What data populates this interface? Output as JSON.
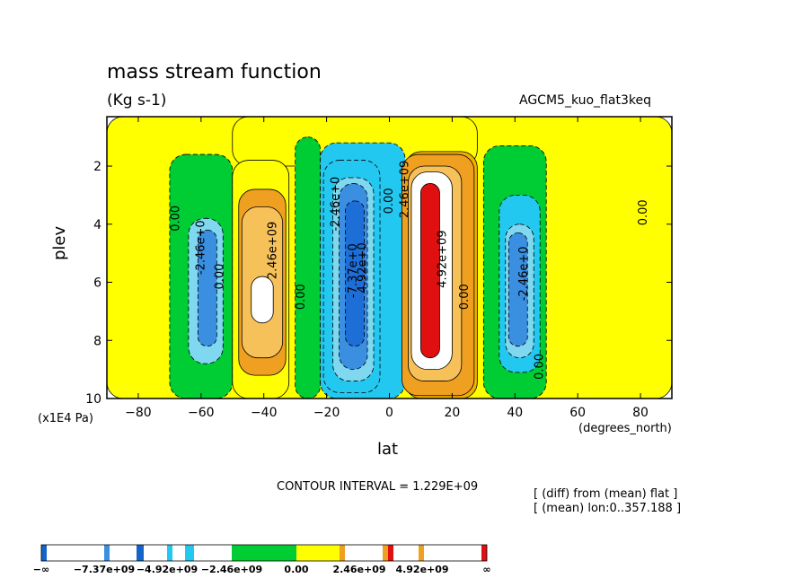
{
  "header": {
    "title": "mass stream function",
    "units": "(Kg s-1)",
    "run": "AGCM5_kuo_flat3keq"
  },
  "axes": {
    "ylabel": "plev",
    "yunit": "(x1E4 Pa)",
    "xlabel": "lat",
    "xunit": "(degrees_north)"
  },
  "footer": {
    "contour_interval": "CONTOUR INTERVAL = 1.229E+09",
    "note1": "[ (diff) from (mean) flat ]",
    "note2": "[ (mean) lon:0..357.188 ]"
  },
  "chart_data": {
    "type": "heatmap",
    "title": "mass stream function",
    "subtitle": "(Kg s-1)",
    "xlabel": "lat",
    "ylabel": "plev",
    "xlim": [
      -90,
      90
    ],
    "ylim": [
      10,
      0.3
    ],
    "x_ticks": [
      -80,
      -60,
      -40,
      -20,
      0,
      20,
      40,
      60,
      80
    ],
    "y_ticks": [
      2,
      4,
      6,
      8,
      10
    ],
    "contour_interval": 1229000000.0,
    "contour_labels": [
      {
        "text": "0.00",
        "x": -67,
        "y": 3.8
      },
      {
        "text": "-2.46e+0",
        "x": -59,
        "y": 4.8
      },
      {
        "text": "0.00",
        "x": -53,
        "y": 5.8
      },
      {
        "text": "2.46e+09",
        "x": -36,
        "y": 4.9
      },
      {
        "text": "0.00",
        "x": -27,
        "y": 6.5
      },
      {
        "text": "-2.46e+0",
        "x": -16,
        "y": 3.3
      },
      {
        "text": "-7.37e+0",
        "x": -10.5,
        "y": 5.6
      },
      {
        "text": "4.92e+0",
        "x": -7.5,
        "y": 5.5
      },
      {
        "text": "0.00",
        "x": 1,
        "y": 3.2
      },
      {
        "text": "2.46e+09",
        "x": 6,
        "y": 2.8
      },
      {
        "text": "4.92e+09",
        "x": 18,
        "y": 5.2
      },
      {
        "text": "0.00",
        "x": 25,
        "y": 6.5
      },
      {
        "text": "-2.46e+0",
        "x": 44,
        "y": 5.7
      },
      {
        "text": "0.00",
        "x": 49,
        "y": 8.9
      },
      {
        "text": "0.00",
        "x": 82,
        "y": 3.6
      }
    ],
    "cells": [
      {
        "x": [
          -90,
          90
        ],
        "y": [
          0.3,
          10
        ],
        "level": 0.5
      },
      {
        "x": [
          -50,
          28
        ],
        "y": [
          0.3,
          2.0
        ],
        "level": 0.5
      },
      {
        "x": [
          -70,
          -50
        ],
        "y": [
          1.6,
          10
        ],
        "level": -0.5
      },
      {
        "x": [
          -30,
          -22
        ],
        "y": [
          1.0,
          10
        ],
        "level": -0.5
      },
      {
        "x": [
          -22,
          5
        ],
        "y": [
          1.2,
          10
        ],
        "level": -1
      },
      {
        "x": [
          5,
          28
        ],
        "y": [
          1.5,
          10
        ],
        "level": 1
      },
      {
        "x": [
          30,
          50
        ],
        "y": [
          1.3,
          10
        ],
        "level": -0.5
      },
      {
        "x": [
          -50,
          -32
        ],
        "y": [
          1.8,
          10
        ],
        "level": 0.5
      },
      {
        "x": [
          -48,
          -33
        ],
        "y": [
          2.8,
          9.2
        ],
        "level": 2
      },
      {
        "x": [
          -47,
          -34
        ],
        "y": [
          3.4,
          8.6
        ],
        "level": 3
      },
      {
        "x": [
          -44,
          -37
        ],
        "y": [
          5.8,
          7.4
        ],
        "level": 5
      },
      {
        "x": [
          -64,
          -53
        ],
        "y": [
          3.8,
          8.8
        ],
        "level": -3
      },
      {
        "x": [
          -61,
          -55
        ],
        "y": [
          4.2,
          8.2
        ],
        "level": -5
      },
      {
        "x": [
          -21,
          -3
        ],
        "y": [
          1.8,
          9.8
        ],
        "level": -2
      },
      {
        "x": [
          -18,
          -5
        ],
        "y": [
          2.4,
          9.4
        ],
        "level": -3
      },
      {
        "x": [
          -16,
          -7
        ],
        "y": [
          2.6,
          9.0
        ],
        "level": -5
      },
      {
        "x": [
          -14,
          -8
        ],
        "y": [
          3.2,
          8.2
        ],
        "level": -7
      },
      {
        "x": [
          4,
          27
        ],
        "y": [
          1.6,
          9.9
        ],
        "level": 2
      },
      {
        "x": [
          6,
          23
        ],
        "y": [
          2.0,
          9.4
        ],
        "level": 3
      },
      {
        "x": [
          7,
          20
        ],
        "y": [
          2.2,
          9.0
        ],
        "level": 5
      },
      {
        "x": [
          10,
          16
        ],
        "y": [
          2.6,
          8.6
        ],
        "level": 8
      },
      {
        "x": [
          35,
          48
        ],
        "y": [
          3.0,
          9.1
        ],
        "level": -2
      },
      {
        "x": [
          37,
          46
        ],
        "y": [
          4.0,
          8.6
        ],
        "level": -3
      },
      {
        "x": [
          38,
          44
        ],
        "y": [
          4.3,
          8.2
        ],
        "level": -5
      }
    ]
  },
  "colorbar": {
    "labels": [
      "-∞",
      "-7.37e+09",
      "-4.92e+09",
      "-2.46e+09",
      "0.00",
      "2.46e+09",
      "4.92e+09",
      "∞"
    ],
    "bins": [
      {
        "lo": "-∞",
        "hi": -7370000000.0,
        "color": "#1565c8"
      },
      {
        "lo": -7370000000.0,
        "hi": -6140000000.0,
        "color": "#ffffff"
      },
      {
        "lo": -6140000000.0,
        "hi": -4920000000.0,
        "color": "#3a8fe0"
      },
      {
        "lo": -4920000000.0,
        "hi": -3690000000.0,
        "color": "#ffffff"
      },
      {
        "lo": -3690000000.0,
        "hi": -2460000000.0,
        "color": "#23c8f0"
      },
      {
        "lo": -2460000000.0,
        "hi": 0,
        "color": "#00cc33"
      },
      {
        "lo": 0,
        "hi": 2460000000.0,
        "color": "#ffff00"
      },
      {
        "lo": 2460000000.0,
        "hi": 3690000000.0,
        "color": "#f0a020"
      },
      {
        "lo": 3690000000.0,
        "hi": 4920000000.0,
        "color": "#ffffff"
      },
      {
        "lo": 4920000000.0,
        "hi": "∞",
        "color": "#e11010"
      }
    ]
  },
  "palette": {
    "-7": "#1e6ed8",
    "-5": "#3a8fe0",
    "-3": "#7fd8f0",
    "-2": "#23c8f0",
    "-1": "#23c8f0",
    "-0.5": "#00cc33",
    "0.5": "#ffff00",
    "1": "#f4b000",
    "2": "#f0a020",
    "3": "#f7c15a",
    "5": "#ffffff",
    "8": "#e11010"
  }
}
